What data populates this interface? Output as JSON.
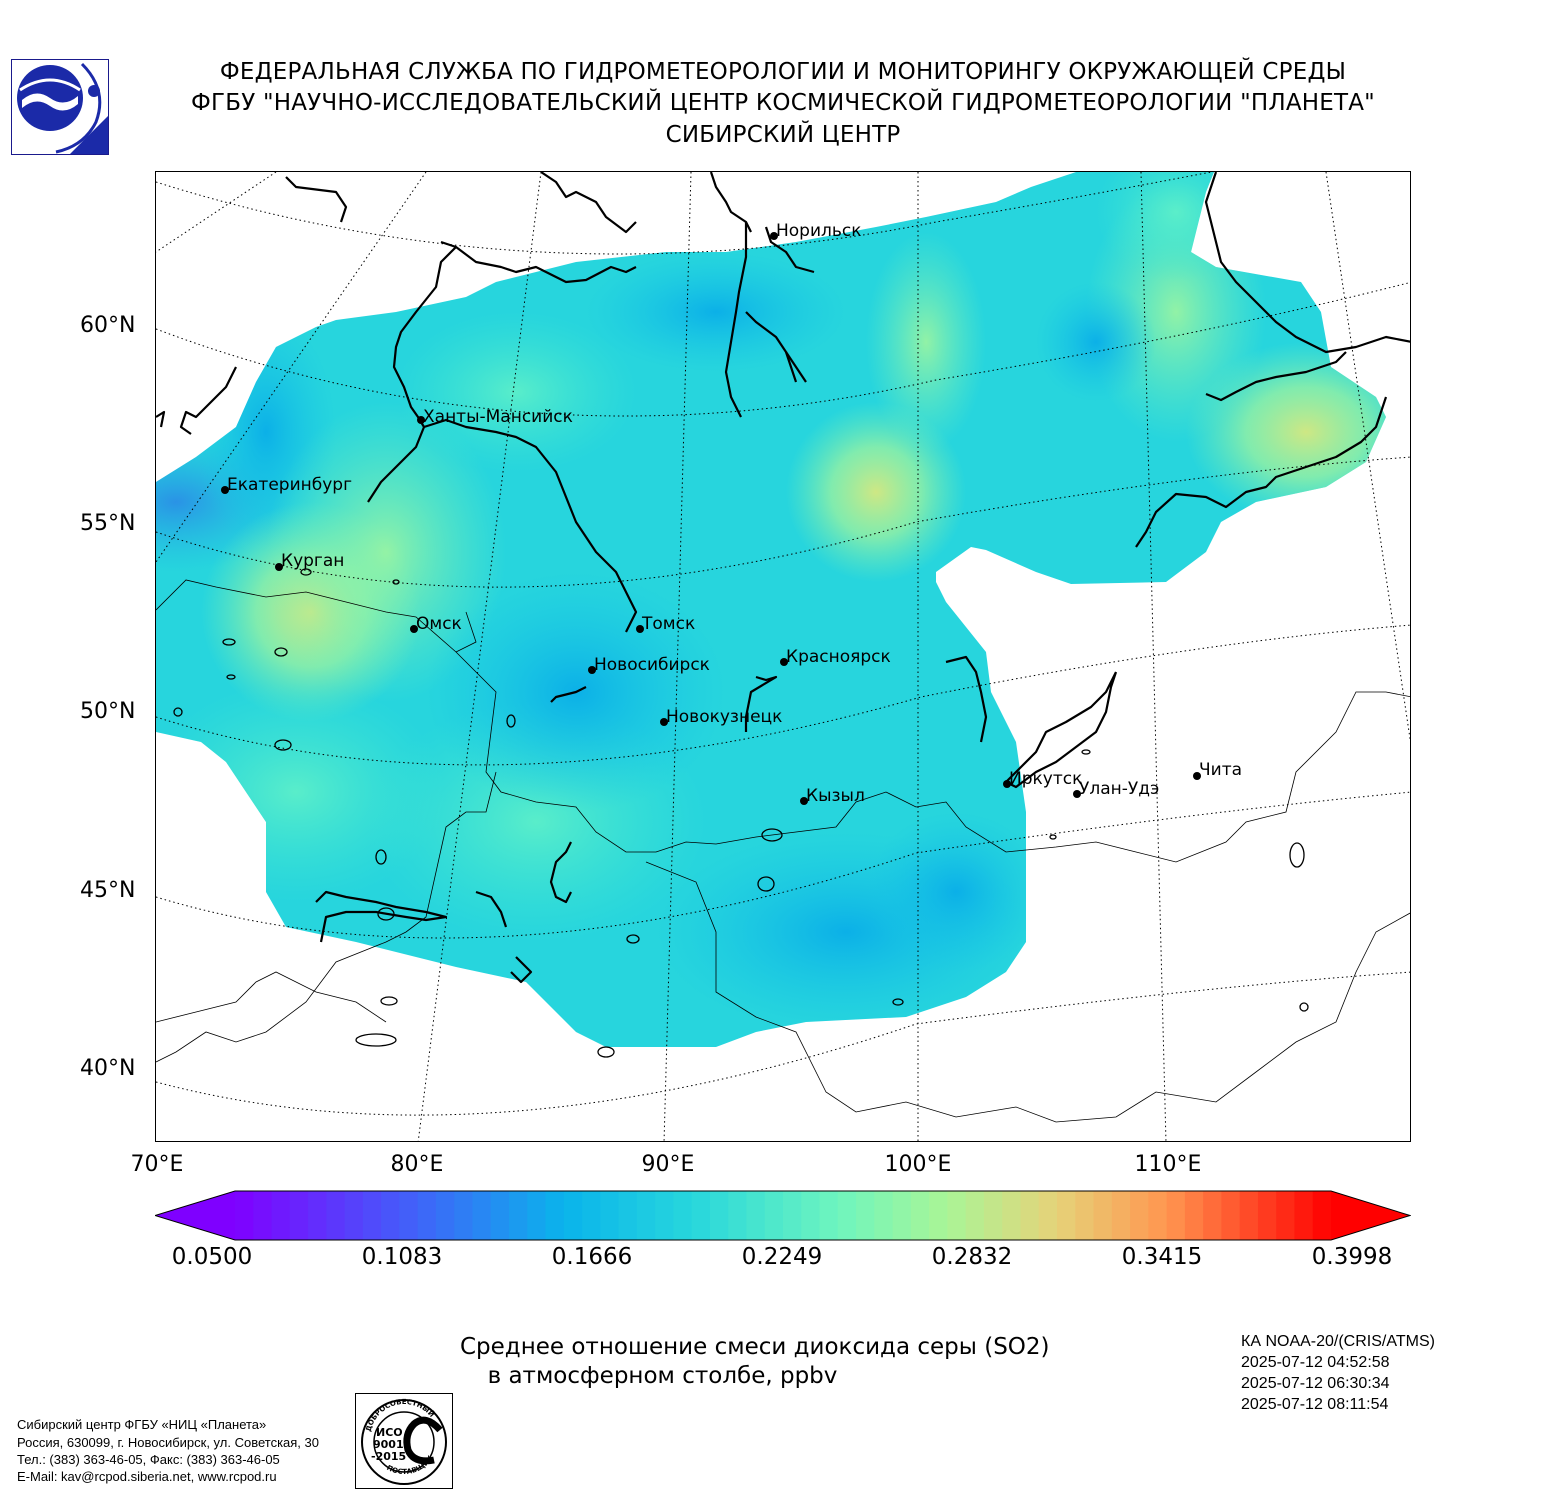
{
  "header": {
    "line1": "ФЕДЕРАЛЬНАЯ СЛУЖБА ПО ГИДРОМЕТЕОРОЛОГИИ И МОНИТОРИНГУ ОКРУЖАЮЩЕЙ СРЕДЫ",
    "line2": "ФГБУ \"НАУЧНО-ИССЛЕДОВАТЕЛЬСКИЙ ЦЕНТР КОСМИЧЕСКОЙ ГИДРОМЕТЕОРОЛОГИИ \"ПЛАНЕТА\"",
    "line3": "СИБИРСКИЙ ЦЕНТР"
  },
  "map": {
    "lat_labels": [
      "60°N",
      "55°N",
      "50°N",
      "45°N",
      "40°N"
    ],
    "lon_labels": [
      "70°E",
      "80°E",
      "90°E",
      "100°E",
      "110°E"
    ],
    "cities": [
      {
        "name": "Норильск"
      },
      {
        "name": "Ханты-Мансийск"
      },
      {
        "name": "Екатеринбург"
      },
      {
        "name": "Курган"
      },
      {
        "name": "Омск"
      },
      {
        "name": "Томск"
      },
      {
        "name": "Новосибирск"
      },
      {
        "name": "Красноярск"
      },
      {
        "name": "Новокузнецк"
      },
      {
        "name": "Иркутск"
      },
      {
        "name": "Улан-Удэ"
      },
      {
        "name": "Чита"
      },
      {
        "name": "Кызыл"
      }
    ],
    "colors": {
      "low": "#7f00ff",
      "mid": "#1fd6d9",
      "high": "#ff0000"
    }
  },
  "colorbar": {
    "ticks": [
      "0.0500",
      "0.1083",
      "0.1666",
      "0.2249",
      "0.2832",
      "0.3415",
      "0.3998"
    ],
    "min": 0.05,
    "max": 0.3998,
    "extend": "both"
  },
  "title": {
    "line1": "Среднее отношение смеси диоксида серы (SO2)",
    "line2": "в атмосферном столбе, ppbv"
  },
  "satellite": {
    "instrument": "КА NOAA-20/(CRIS/ATMS)",
    "time1": "2025-07-12 04:52:58",
    "time2": "2025-07-12 06:30:34",
    "time3": "2025-07-12 08:11:54"
  },
  "footer": {
    "line1": "Сибирский центр ФГБУ «НИЦ «Планета»",
    "line2": "Россия, 630099, г. Новосибирск, ул. Советская, 30",
    "line3": "Тел.: (383) 363-46-05, Факс: (383) 363-46-05",
    "line4": "E-Mail: kav@rcpod.siberia.net, www.rcpod.ru"
  },
  "iso_stamp": {
    "top": "ДОБРОСОВЕСТНЫЙ",
    "line1": "ИСО",
    "line2": "9001",
    "line3": "-2015",
    "bottom": "ПОСТАВЩИК"
  }
}
